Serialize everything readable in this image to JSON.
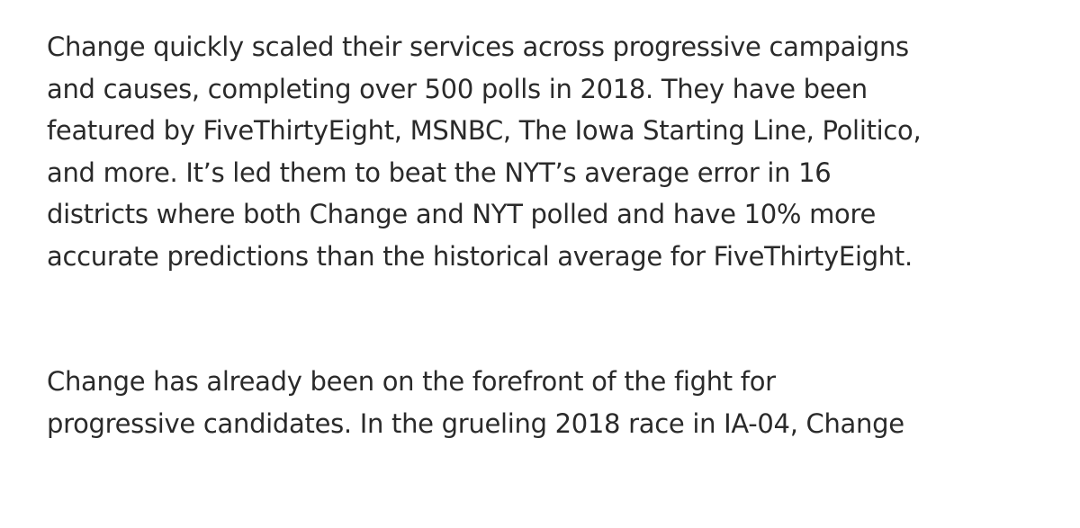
{
  "paragraphs": [
    {
      "lines": [
        "Change quickly scaled their services across progressive campaigns",
        "and causes, completing over 500 polls in 2018. They have been",
        "featured by FiveThirtyEight, MSNBC, The Iowa Starting Line, Politico,",
        "and more. It’s led them to beat the NYT’s average error in 16",
        "districts where both Change and NYT polled and have 10% more",
        "accurate predictions than the historical average for FiveThirtyEight."
      ]
    },
    {
      "lines": [
        "Change has already been on the forefront of the fight for",
        "progressive candidates. In the grueling 2018 race in IA-04, Change"
      ]
    }
  ]
}
